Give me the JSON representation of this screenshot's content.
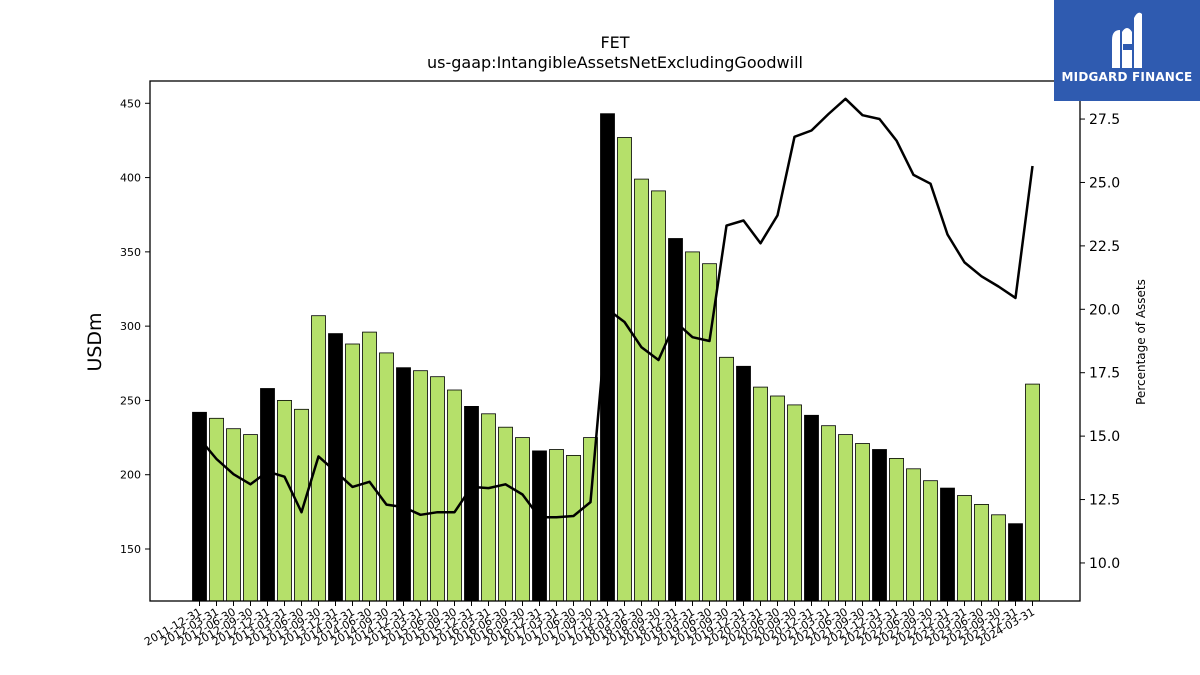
{
  "chart_data": {
    "type": "bar",
    "title": "FET",
    "subtitle": "us-gaap:IntangibleAssetsNetExcludingGoodwill",
    "ylabel": "USDm",
    "y2label": "Percentage of Assets",
    "ylim": [
      115,
      465
    ],
    "y2lim": [
      8.5,
      29.0
    ],
    "yticks": [
      150,
      200,
      250,
      300,
      350,
      400,
      450
    ],
    "y2ticks": [
      10.0,
      12.5,
      15.0,
      17.5,
      20.0,
      22.5,
      25.0,
      27.5
    ],
    "categories": [
      "2011-12-31",
      "2012-03-31",
      "2012-06-30",
      "2012-09-30",
      "2012-12-31",
      "2013-03-31",
      "2013-06-30",
      "2013-09-30",
      "2013-12-31",
      "2014-03-31",
      "2014-06-30",
      "2014-09-30",
      "2014-12-31",
      "2015-03-31",
      "2015-06-30",
      "2015-09-30",
      "2015-12-31",
      "2016-03-31",
      "2016-06-30",
      "2016-09-30",
      "2016-12-31",
      "2017-03-31",
      "2017-06-30",
      "2017-09-30",
      "2017-12-31",
      "2018-03-31",
      "2018-06-30",
      "2018-09-30",
      "2018-12-31",
      "2019-03-31",
      "2019-06-30",
      "2019-09-30",
      "2019-12-31",
      "2020-03-31",
      "2020-06-30",
      "2020-09-30",
      "2020-12-31",
      "2021-03-31",
      "2021-06-30",
      "2021-09-30",
      "2021-12-31",
      "2022-03-31",
      "2022-06-30",
      "2022-09-30",
      "2022-12-31",
      "2023-03-31",
      "2023-06-30",
      "2023-09-30",
      "2023-12-31",
      "2024-03-31"
    ],
    "series": [
      {
        "type": "bar",
        "values": [
          242,
          238,
          231,
          227,
          258,
          250,
          244,
          307,
          295,
          288,
          296,
          282,
          272,
          270,
          266,
          257,
          246,
          241,
          232,
          225,
          216,
          217,
          213,
          225,
          443,
          427,
          399,
          391,
          359,
          350,
          342,
          279,
          273,
          259,
          253,
          247,
          240,
          233,
          227,
          221,
          217,
          211,
          204,
          196,
          191,
          186,
          180,
          173,
          167,
          261
        ]
      },
      {
        "type": "line",
        "axis": "right",
        "values": [
          14.9,
          14.1,
          13.5,
          13.1,
          13.6,
          13.4,
          12.0,
          14.2,
          13.6,
          13.0,
          13.2,
          12.3,
          12.2,
          11.9,
          12.0,
          12.0,
          13.0,
          12.95,
          13.1,
          12.7,
          11.8,
          11.8,
          11.85,
          12.4,
          20.0,
          19.5,
          18.5,
          18.0,
          19.5,
          18.9,
          18.75,
          23.3,
          23.5,
          22.6,
          23.7,
          26.8,
          27.05,
          27.7,
          28.3,
          27.65,
          27.5,
          26.65,
          25.3,
          24.95,
          22.95,
          21.85,
          21.3,
          20.9,
          20.45,
          25.65
        ]
      }
    ],
    "colors": {
      "bar": "#b5e06a",
      "bar_quarter_end": "#000000",
      "line": "#000000"
    }
  },
  "logo": {
    "text": "MIDGARD FINANCE",
    "icon": "midgard-m-logo-icon",
    "background": "#2f5bb0"
  }
}
